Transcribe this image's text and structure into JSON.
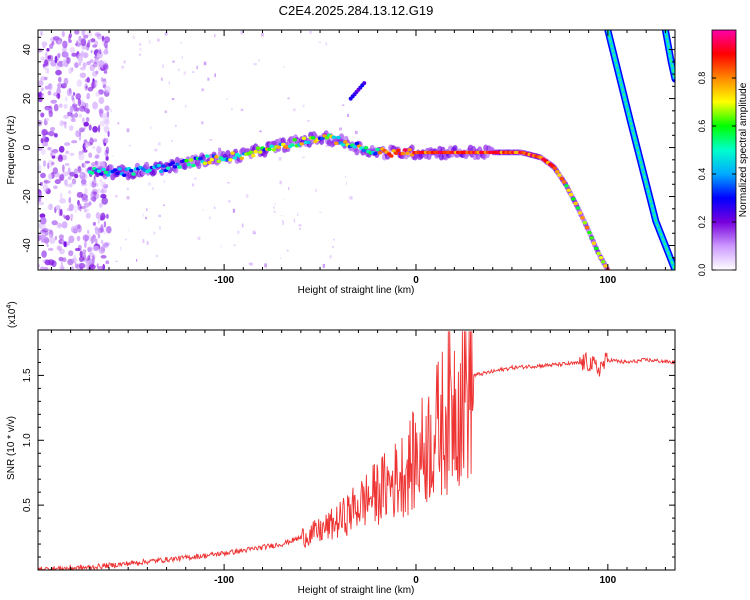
{
  "title": "C2E4.2025.284.13.12.G19",
  "chart_data": [
    {
      "type": "heatmap",
      "xlabel": "Height of straight line (km)",
      "ylabel": "Frequency (Hz)",
      "xlim": [
        -197,
        135
      ],
      "ylim": [
        -50,
        48
      ],
      "xticks": [
        -100,
        0,
        100
      ],
      "xtick_labels": [
        "-100",
        "0",
        "100"
      ],
      "yticks": [
        -40,
        -20,
        0,
        20,
        40
      ],
      "ytick_labels": [
        "-40",
        "-20",
        "0",
        "20",
        "40"
      ],
      "colorbar": {
        "label": "Normalized spectral amplitude",
        "range": [
          0,
          1
        ],
        "ticks": [
          0.0,
          0.2,
          0.4,
          0.6,
          0.8
        ],
        "tick_labels": [
          "0.0",
          "0.2",
          "0.4",
          "0.6",
          "0.8"
        ],
        "colors": [
          "#ffffff",
          "#cc99ff",
          "#7700dd",
          "#0000ff",
          "#00aaff",
          "#00ffcc",
          "#00ff00",
          "#ffff00",
          "#ff8800",
          "#ff0000",
          "#ff00aa"
        ]
      },
      "main_trace": {
        "x": [
          -170,
          -150,
          -130,
          -110,
          -90,
          -70,
          -50,
          -40,
          -30,
          -20,
          -10,
          0,
          20,
          40,
          55,
          65,
          72,
          78,
          84,
          90,
          95,
          100
        ],
        "y": [
          -10,
          -10,
          -8,
          -5,
          -3,
          1,
          4,
          3,
          0,
          -2,
          -2,
          -2,
          -2,
          -2,
          -2,
          -4,
          -8,
          -15,
          -24,
          -34,
          -43,
          -50
        ]
      },
      "image_branches": [
        {
          "x": [
            100,
            112,
            125,
            135
          ],
          "y": [
            48,
            10,
            -30,
            -50
          ]
        },
        {
          "x": [
            130,
            133,
            135
          ],
          "y": [
            48,
            35,
            28
          ]
        }
      ],
      "noise_region_x": [
        -197,
        -160
      ]
    },
    {
      "type": "line",
      "xlabel": "Height of straight line (km)",
      "ylabel": "SNR (10 * v/v)",
      "y_multiplier": "(x10⁴)",
      "multiplier_base": "(x10",
      "multiplier_exp": "4",
      "multiplier_close": ")",
      "xlim": [
        -197,
        135
      ],
      "ylim": [
        0,
        1.85
      ],
      "xticks": [
        -100,
        0,
        100
      ],
      "xtick_labels": [
        "-100",
        "0",
        "100"
      ],
      "yticks": [
        0.5,
        1.0,
        1.5
      ],
      "ytick_labels": [
        "0.5",
        "1.0",
        "1.5"
      ],
      "series": [
        {
          "name": "SNR",
          "color": "#ee3333",
          "x": [
            -197,
            -170,
            -150,
            -130,
            -110,
            -90,
            -70,
            -60,
            -50,
            -40,
            -30,
            -20,
            -10,
            0,
            10,
            20,
            30,
            50,
            70,
            90,
            95,
            100,
            110,
            120,
            135
          ],
          "y": [
            0.005,
            0.02,
            0.05,
            0.08,
            0.11,
            0.15,
            0.2,
            0.25,
            0.3,
            0.38,
            0.5,
            0.6,
            0.7,
            0.85,
            1.05,
            1.3,
            1.5,
            1.56,
            1.58,
            1.6,
            1.55,
            1.62,
            1.6,
            1.62,
            1.6
          ]
        }
      ]
    }
  ]
}
